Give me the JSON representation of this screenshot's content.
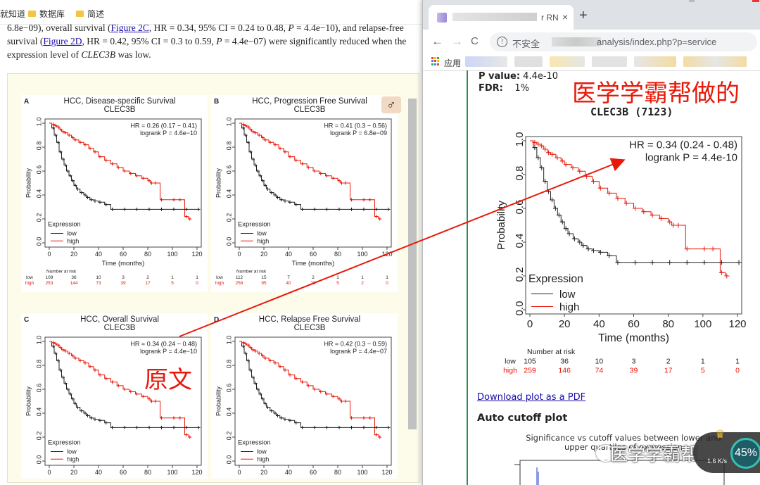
{
  "bookmarks": {
    "items": [
      {
        "label": "就知道"
      },
      {
        "label": "数据库"
      },
      {
        "label": "简述"
      }
    ]
  },
  "article": {
    "line1_pre": "6.8e−09), overall survival (",
    "link1": "Figure 2C",
    "line1_post": ", HR = 0.34, 95% CI = 0.24 to 0.48, ",
    "p_letter": "P",
    "line1_tail": " = 4.4e−10), and relapse-free",
    "line2_pre": "survival (",
    "link2": "Figure 2D",
    "line2_post": ", HR = 0.42, 95% CI = 0.3 to 0.59, ",
    "line2_tail": " = 4.4e−07) were significantly reduced when the",
    "line3_pre": "expression level of ",
    "gene": "CLEC3B",
    "line3_post": " was low."
  },
  "figure_panels": [
    {
      "letter": "A",
      "title": "HCC, Disease-specific Survival",
      "subtitle": "CLEC3B",
      "hr": "HR = 0.26 (0.17 − 0.41)",
      "logrank": "logrank P = 4.6e−10",
      "risk_low": [
        "109",
        "36",
        "10",
        "3",
        "2",
        "1",
        "1"
      ],
      "risk_high": [
        "253",
        "144",
        "73",
        "39",
        "17",
        "5",
        "0"
      ],
      "show_xlabel": true,
      "show_risk": true
    },
    {
      "letter": "B",
      "title": "HCC, Progression Free Survival",
      "subtitle": "CLEC3B",
      "hr": "HR = 0.41 (0.3 − 0.56)",
      "logrank": "logrank P = 6.8e−09",
      "risk_low": [
        "112",
        "15",
        "7",
        "2",
        "1",
        "1",
        "1"
      ],
      "risk_high": [
        "258",
        "95",
        "40",
        "18",
        "5",
        "2",
        "0"
      ],
      "show_xlabel": true,
      "show_risk": true
    },
    {
      "letter": "C",
      "title": "HCC, Overall Survival",
      "subtitle": "CLEC3B",
      "hr": "HR = 0.34 (0.24 − 0.48)",
      "logrank": "logrank P = 4.4e−10",
      "risk_low": [],
      "risk_high": [],
      "show_xlabel": false,
      "show_risk": false
    },
    {
      "letter": "D",
      "title": "HCC, Relapse Free Survival",
      "subtitle": "CLEC3B",
      "hr": "HR = 0.42 (0.3 − 0.59)",
      "logrank": "logrank P = 4.4e−07",
      "risk_low": [],
      "risk_high": [],
      "show_xlabel": false,
      "show_risk": false
    }
  ],
  "km_axes": {
    "ylabel": "Probability",
    "xlabel": "Time (months)",
    "yticks": [
      "0.0",
      "0.2",
      "0.4",
      "0.6",
      "0.8",
      "1.0"
    ],
    "xticks": [
      "0",
      "20",
      "40",
      "60",
      "80",
      "100",
      "120"
    ],
    "legend_title": "Expression",
    "legend_low": "low",
    "legend_high": "high",
    "risk_title": "Number at risk",
    "color_low": "#222222",
    "color_high": "#e8190b"
  },
  "annotations": {
    "yuanwen": "原文",
    "xueba": "医学学霸帮做的",
    "arrow_color": "#e8190b"
  },
  "browser": {
    "tab_title_tail": "r RN",
    "tab_close": "×",
    "new_tab": "+",
    "back": "←",
    "forward": "→",
    "reload": "C",
    "insecure": "不安全",
    "url": "analysis/index.php?p=service",
    "apps_label": "应用"
  },
  "result": {
    "pvalue_label": "P value:",
    "pvalue": "4.4e-10",
    "fdr_label": "FDR:",
    "fdr": "1%",
    "plot_title": "CLEC3B (7123)",
    "hr": "HR = 0.34 (0.24 - 0.48)",
    "logrank": "logrank P = 4.4e-10",
    "risk_title": "Number at risk",
    "risk_low": [
      "105",
      "36",
      "10",
      "3",
      "2",
      "1",
      "1"
    ],
    "risk_high": [
      "259",
      "146",
      "74",
      "39",
      "17",
      "5",
      "0"
    ],
    "pdf_link": "Download plot as a PDF",
    "auto_cutoff": "Auto cutoff plot",
    "sig_title": "Significance vs cutoff values between lower and upper quartiles of expression"
  },
  "overlay": {
    "watermark": "医学学霸帮",
    "speed_percent": "45%",
    "speed_rate": "1.6 K/s"
  },
  "chart_data": [
    {
      "type": "line",
      "title": "HCC, Overall Survival",
      "subtitle": "CLEC3B",
      "xlabel": "Time (months)",
      "ylabel": "Probability",
      "xlim": [
        0,
        120
      ],
      "ylim": [
        0,
        1
      ],
      "legend": "bottom-left",
      "series": [
        {
          "name": "low",
          "x": [
            0,
            2,
            4,
            6,
            8,
            10,
            12,
            14,
            16,
            18,
            20,
            22,
            25,
            28,
            30,
            33,
            36,
            40,
            45,
            50,
            60,
            70,
            80,
            90,
            100,
            110,
            120
          ],
          "values": [
            1.0,
            0.96,
            0.9,
            0.84,
            0.76,
            0.7,
            0.65,
            0.6,
            0.56,
            0.52,
            0.48,
            0.45,
            0.42,
            0.4,
            0.38,
            0.36,
            0.35,
            0.34,
            0.32,
            0.28,
            0.28,
            0.28,
            0.28,
            0.28,
            0.28,
            0.28,
            0.28
          ]
        },
        {
          "name": "high",
          "x": [
            0,
            2,
            4,
            6,
            8,
            10,
            12,
            15,
            18,
            20,
            24,
            28,
            32,
            36,
            40,
            45,
            50,
            55,
            60,
            65,
            70,
            75,
            80,
            82,
            85,
            90,
            100,
            105,
            110,
            113
          ],
          "values": [
            1.0,
            0.99,
            0.98,
            0.97,
            0.95,
            0.93,
            0.92,
            0.9,
            0.88,
            0.86,
            0.84,
            0.82,
            0.79,
            0.76,
            0.72,
            0.69,
            0.66,
            0.63,
            0.6,
            0.58,
            0.56,
            0.54,
            0.52,
            0.5,
            0.5,
            0.36,
            0.36,
            0.36,
            0.22,
            0.2
          ]
        }
      ]
    }
  ]
}
